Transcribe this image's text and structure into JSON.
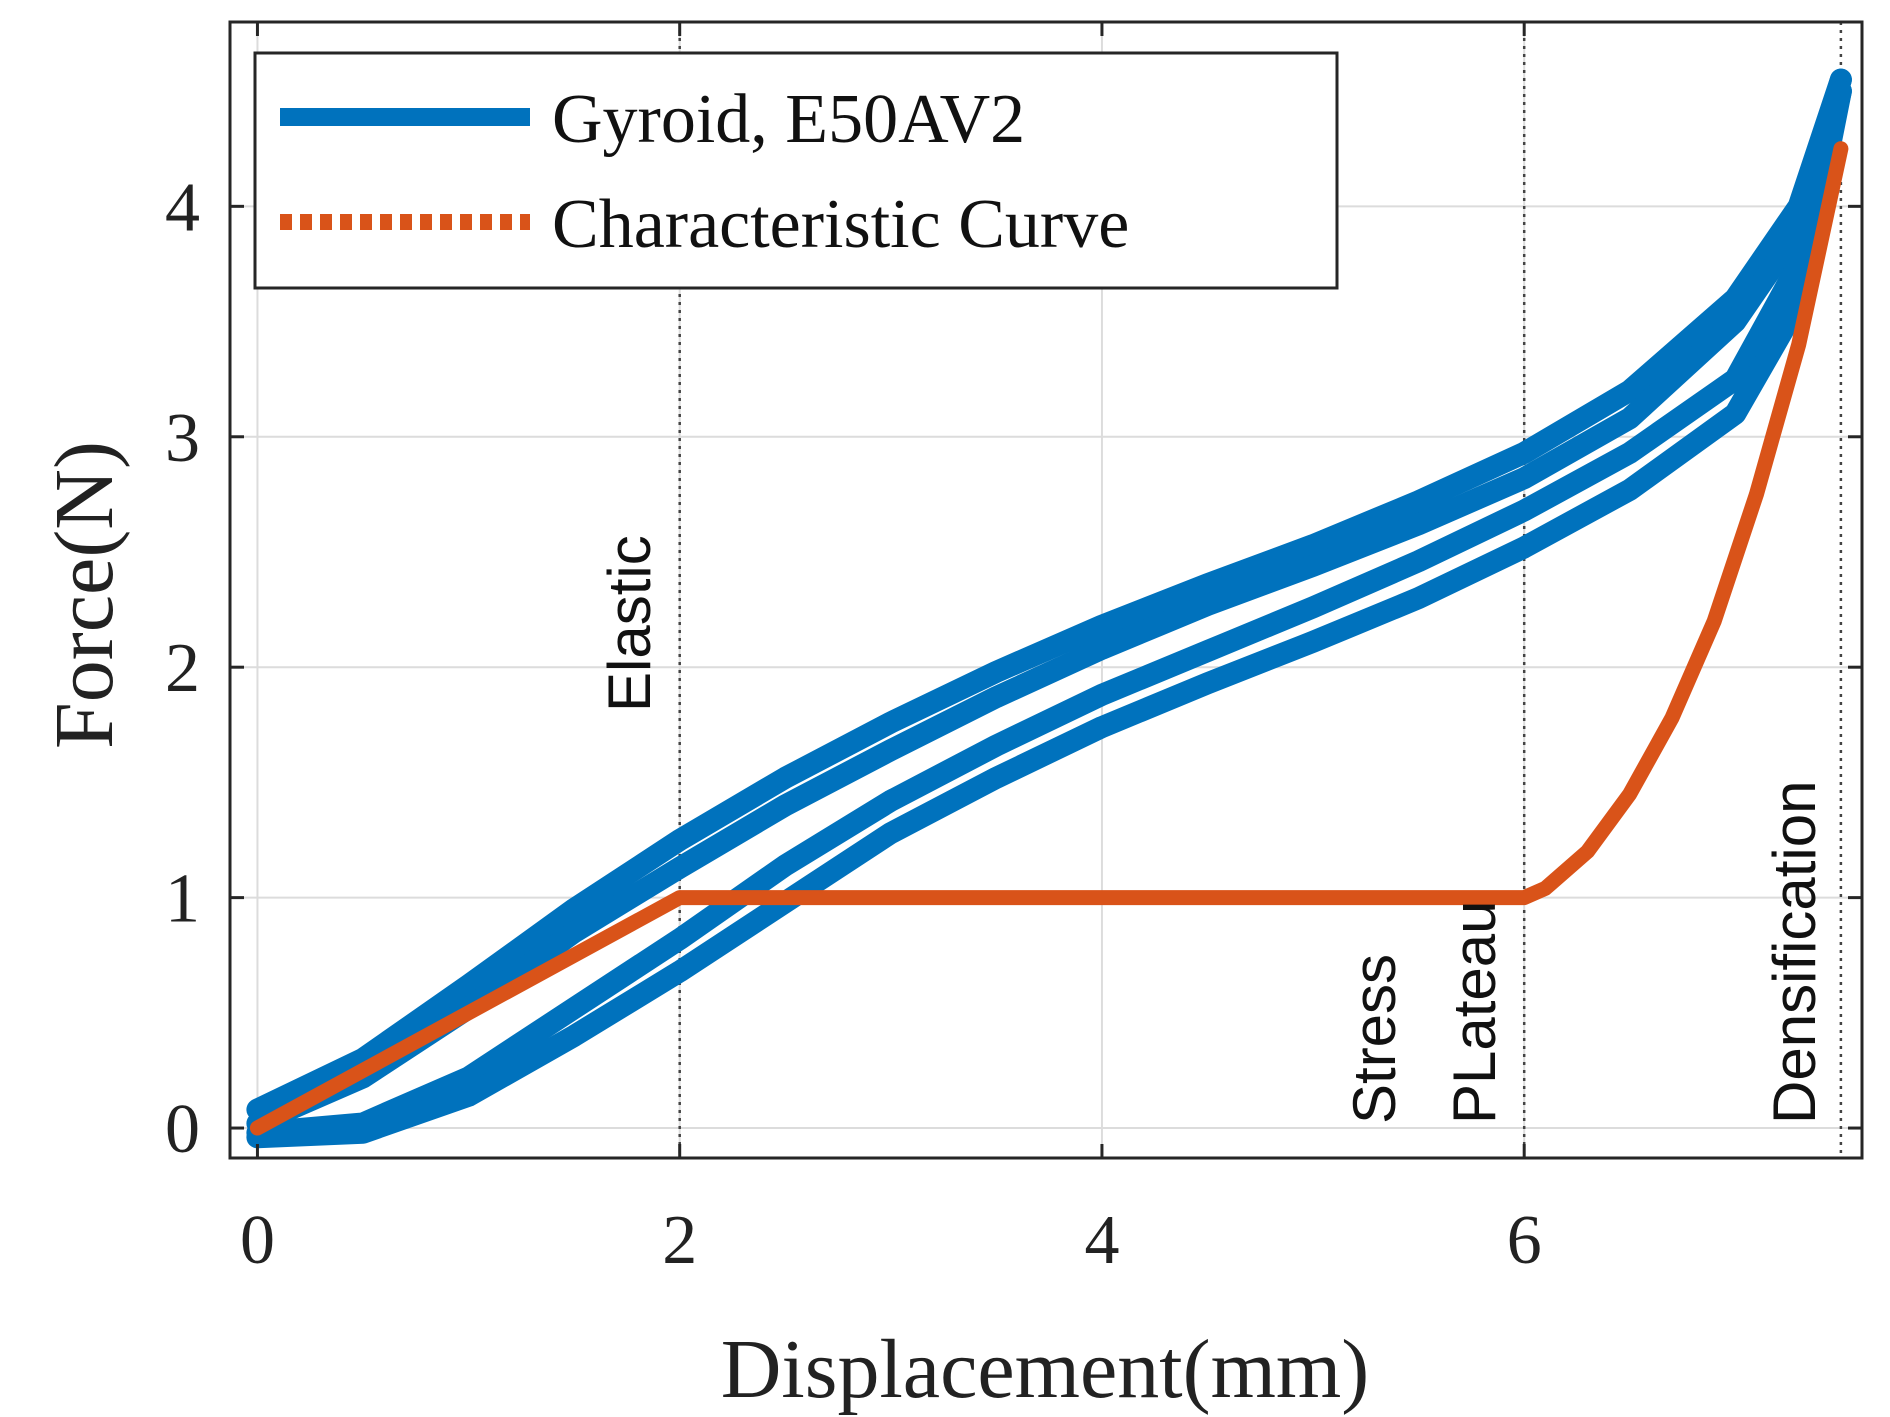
{
  "chart_data": {
    "type": "line",
    "xlabel": "Displacement(mm)",
    "ylabel": "Force(N)",
    "xlim": [
      -0.13,
      7.6
    ],
    "ylim": [
      -0.13,
      4.8
    ],
    "xticks": [
      0,
      2,
      4,
      6
    ],
    "yticks": [
      0,
      1,
      2,
      3,
      4
    ],
    "grid": true,
    "legend_position": "top-left",
    "colors": {
      "gyroid": "#0072BD",
      "characteristic": "#D95319",
      "frame": "#262626",
      "grid": "#dcdcdc"
    },
    "series": [
      {
        "name": "Gyroid, E50AV2",
        "color": "#0072BD",
        "style": "solid",
        "x": [
          0,
          0.5,
          1.0,
          1.5,
          2.0,
          2.5,
          3.0,
          3.5,
          4.0,
          4.5,
          5.0,
          5.5,
          6.0,
          6.5,
          7.0,
          7.3,
          7.5
        ],
        "y_loading_upper": [
          0.08,
          0.3,
          0.62,
          0.95,
          1.25,
          1.52,
          1.76,
          1.98,
          2.18,
          2.36,
          2.53,
          2.72,
          2.93,
          3.2,
          3.6,
          4.0,
          4.55
        ],
        "y_loading_lower": [
          0.02,
          0.22,
          0.52,
          0.85,
          1.13,
          1.4,
          1.64,
          1.87,
          2.08,
          2.27,
          2.44,
          2.62,
          2.82,
          3.08,
          3.5,
          3.9,
          4.55
        ],
        "y_unloading_upper": [
          -0.02,
          0.02,
          0.22,
          0.52,
          0.82,
          1.14,
          1.42,
          1.66,
          1.88,
          2.07,
          2.26,
          2.46,
          2.68,
          2.93,
          3.25,
          3.75,
          4.5
        ],
        "y_unloading_lower": [
          -0.04,
          -0.02,
          0.14,
          0.4,
          0.68,
          0.98,
          1.28,
          1.52,
          1.74,
          1.93,
          2.11,
          2.3,
          2.52,
          2.77,
          3.1,
          3.58,
          4.5
        ]
      },
      {
        "name": "Characteristic Curve",
        "color": "#D95319",
        "style": "dotted",
        "x": [
          0,
          2,
          6,
          6.1,
          6.3,
          6.5,
          6.7,
          6.9,
          7.1,
          7.3,
          7.5
        ],
        "y": [
          0,
          1,
          1,
          1.04,
          1.2,
          1.45,
          1.78,
          2.2,
          2.75,
          3.4,
          4.25
        ]
      }
    ],
    "boundaries": [
      {
        "x": 2,
        "label": "Elastic"
      },
      {
        "x": 6,
        "label": "Stress PLateau"
      },
      {
        "x": 7.5,
        "label": "Densification"
      }
    ],
    "annotations": {
      "elastic": "Elastic",
      "stress": "Stress",
      "plateau": "PLateau",
      "densification": "Densification"
    }
  }
}
